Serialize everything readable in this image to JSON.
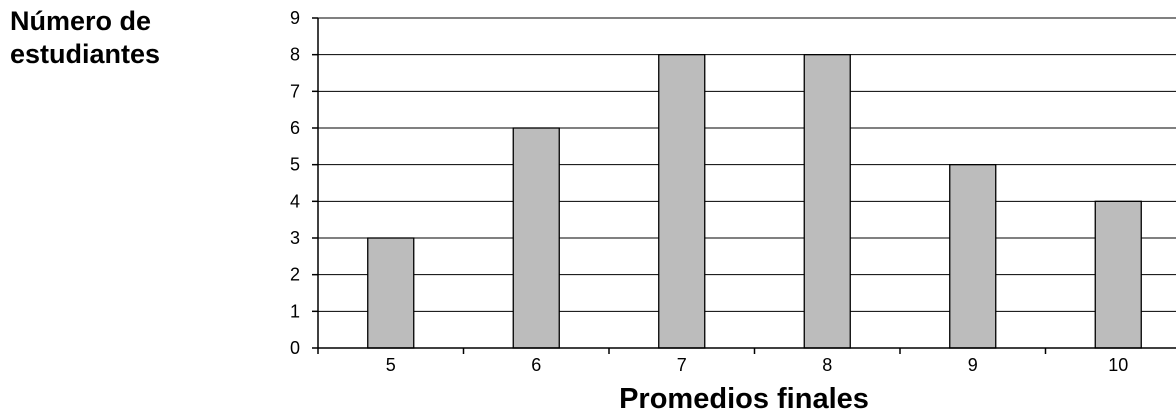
{
  "chart_data": {
    "type": "bar",
    "title": "",
    "ylabel_lines": [
      "Número de",
      "estudiantes"
    ],
    "xlabel": "Promedios finales",
    "categories": [
      "5",
      "6",
      "7",
      "8",
      "9",
      "10"
    ],
    "values": [
      3,
      6,
      8,
      8,
      5,
      4
    ],
    "ylim": [
      0,
      9
    ],
    "yticks": [
      "0",
      "1",
      "2",
      "3",
      "4",
      "5",
      "6",
      "7",
      "8",
      "9"
    ],
    "grid": true,
    "bar_color": "#bcbcbc"
  }
}
